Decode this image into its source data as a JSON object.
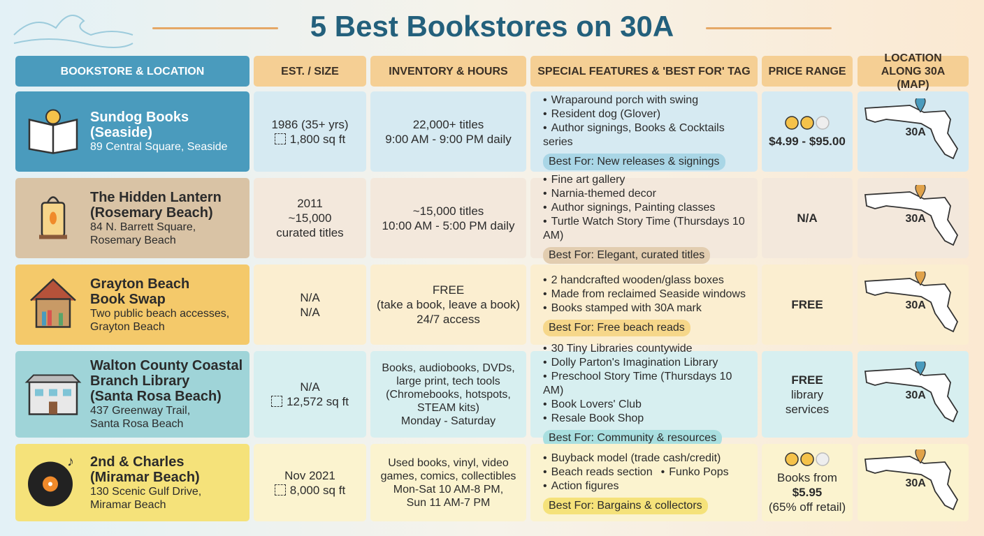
{
  "title": "5 Best Bookstores on 30A",
  "table": {
    "headers": [
      "BOOKSTORE & LOCATION",
      "EST. / SIZE",
      "INVENTORY & HOURS",
      "SPECIAL FEATURES & 'BEST FOR' TAG",
      "PRICE RANGE",
      "LOCATION ALONG 30A (MAP)"
    ],
    "rows": [
      {
        "name": [
          "Sundog Books",
          "(Seaside)"
        ],
        "address": [
          "89 Central Square, Seaside"
        ],
        "est": [
          "1986 (35+ yrs)",
          "1,800 sq ft"
        ],
        "inventory": [
          "22,000+ titles",
          "9:00 AM - 9:00 PM daily"
        ],
        "features": [
          [
            "Wraparound porch with swing"
          ],
          [
            "Resident dog (Glover)"
          ],
          [
            "Author signings, Books & Cocktails series"
          ]
        ],
        "best_for": "Best For: New releases & signings",
        "price": [
          "$4.99 - $95.00"
        ],
        "map_label": "30A"
      },
      {
        "name": [
          "The Hidden Lantern",
          "(Rosemary Beach)"
        ],
        "address": [
          "84 N. Barrett Square,",
          "Rosemary Beach"
        ],
        "est": [
          "2011",
          "~15,000",
          "curated titles"
        ],
        "inventory": [
          "~15,000 titles",
          "10:00 AM - 5:00 PM daily"
        ],
        "features": [
          [
            "Fine art gallery"
          ],
          [
            "Narnia-themed decor"
          ],
          [
            "Author signings, Painting classes"
          ],
          [
            "Turtle Watch Story Time (Thursdays 10 AM)"
          ]
        ],
        "best_for": "Best For: Elegant, curated titles",
        "price": [
          "N/A"
        ],
        "map_label": "30A"
      },
      {
        "name": [
          "Grayton Beach",
          "Book Swap"
        ],
        "address": [
          "Two public beach accesses,",
          "Grayton Beach"
        ],
        "est": [
          "N/A",
          "N/A"
        ],
        "inventory": [
          "FREE",
          "(take a book, leave a book)",
          "24/7 access"
        ],
        "features": [
          [
            "2 handcrafted wooden/glass boxes"
          ],
          [
            "Made from reclaimed Seaside windows"
          ],
          [
            "Books stamped with 30A mark"
          ]
        ],
        "best_for": "Best For: Free beach reads",
        "price": [
          "FREE"
        ],
        "map_label": "30A"
      },
      {
        "name": [
          "Walton County Coastal",
          "Branch Library",
          "(Santa Rosa Beach)"
        ],
        "address": [
          "437 Greenway Trail,",
          "Santa Rosa Beach"
        ],
        "est": [
          "N/A",
          "12,572 sq ft"
        ],
        "inventory": [
          "Books, audiobooks, DVDs,",
          "large print, tech tools",
          "(Chromebooks, hotspots,",
          "STEAM kits)",
          "Monday - Saturday"
        ],
        "features": [
          [
            "30 Tiny Libraries countywide"
          ],
          [
            "Dolly Parton's Imagination Library"
          ],
          [
            "Preschool Story Time (Thursdays 10 AM)"
          ],
          [
            "Book Lovers' Club",
            "Resale Book Shop"
          ]
        ],
        "best_for": "Best For: Community & resources",
        "price": [
          "FREE",
          "library",
          "services"
        ],
        "map_label": "30A"
      },
      {
        "name": [
          "2nd & Charles",
          "(Miramar Beach)"
        ],
        "address": [
          "130 Scenic Gulf Drive,",
          "Miramar Beach"
        ],
        "est": [
          "Nov 2021",
          "8,000 sq ft"
        ],
        "inventory": [
          "Used books, vinyl, video",
          "games, comics, collectibles",
          "Mon-Sat 10 AM-8 PM,",
          "Sun 11 AM-7 PM"
        ],
        "features": [
          [
            "Buyback model (trade cash/credit)"
          ],
          [
            "Beach reads section",
            "Funko Pops"
          ],
          [
            "Action figures"
          ]
        ],
        "best_for": "Best For: Bargains & collectors",
        "price": [
          "Books from",
          "$5.95",
          "(65% off retail)"
        ],
        "map_label": "30A"
      }
    ]
  }
}
